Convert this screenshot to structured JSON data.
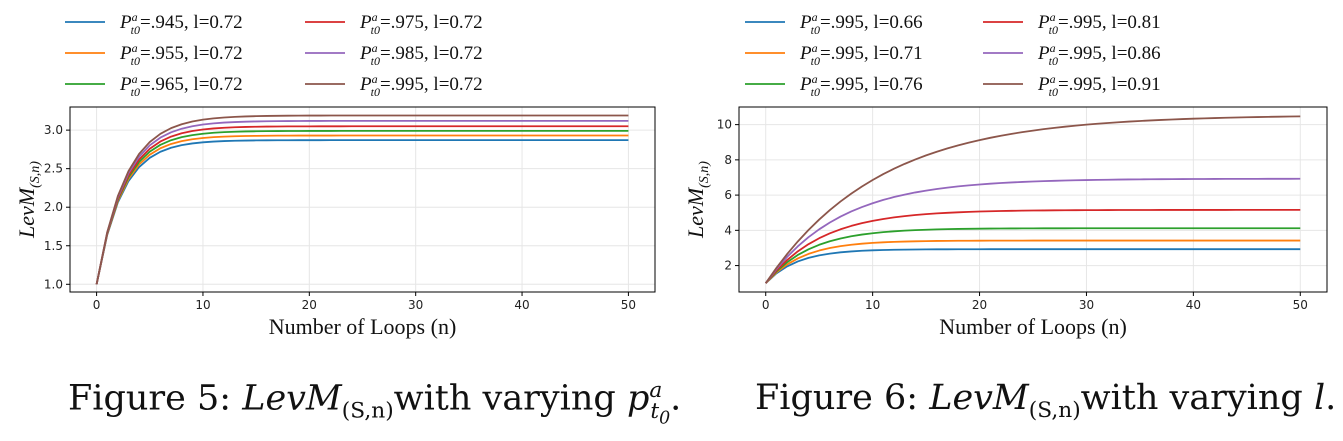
{
  "chart_data": [
    {
      "type": "line",
      "figure": "Figure 5",
      "xlabel": "Number of Loops (n)",
      "ylabel": "LevM",
      "ylabel_sub": "(S,n)",
      "xlim": [
        -2.5,
        52.5
      ],
      "ylim": [
        0.9,
        3.3
      ],
      "xticks": [
        0,
        10,
        20,
        30,
        40,
        50
      ],
      "yticks": [
        1.0,
        1.5,
        2.0,
        2.5,
        3.0
      ],
      "grid": true,
      "legend_position": "top, two columns, above plot",
      "n_points": 51,
      "series": [
        {
          "name_var": "P",
          "name_sup": "a",
          "name_sub": "t0",
          "name_rest": "=.945, l=0.72",
          "color": "#1f77b4",
          "start": 1.0,
          "limit": 2.87,
          "rate": 0.42
        },
        {
          "name_var": "P",
          "name_sup": "a",
          "name_sub": "t0",
          "name_rest": "=.955, l=0.72",
          "color": "#ff7f0e",
          "start": 1.0,
          "limit": 2.93,
          "rate": 0.41
        },
        {
          "name_var": "P",
          "name_sup": "a",
          "name_sub": "t0",
          "name_rest": "=.965, l=0.72",
          "color": "#2ca02c",
          "start": 1.0,
          "limit": 2.99,
          "rate": 0.4
        },
        {
          "name_var": "P",
          "name_sup": "a",
          "name_sub": "t0",
          "name_rest": "=.975, l=0.72",
          "color": "#d62728",
          "start": 1.0,
          "limit": 3.05,
          "rate": 0.39
        },
        {
          "name_var": "P",
          "name_sup": "a",
          "name_sub": "t0",
          "name_rest": "=.985, l=0.72",
          "color": "#9467bd",
          "start": 1.0,
          "limit": 3.12,
          "rate": 0.38
        },
        {
          "name_var": "P",
          "name_sup": "a",
          "name_sub": "t0",
          "name_rest": "=.995, l=0.72",
          "color": "#8c564b",
          "start": 1.0,
          "limit": 3.19,
          "rate": 0.37
        }
      ]
    },
    {
      "type": "line",
      "figure": "Figure 6",
      "xlabel": "Number of Loops (n)",
      "ylabel": "LevM",
      "ylabel_sub": "(S,n)",
      "xlim": [
        -2.5,
        52.5
      ],
      "ylim": [
        0.5,
        11.0
      ],
      "xticks": [
        0,
        10,
        20,
        30,
        40,
        50
      ],
      "yticks": [
        2,
        4,
        6,
        8,
        10
      ],
      "grid": true,
      "legend_position": "top, two columns, above plot",
      "n_points": 51,
      "series": [
        {
          "name_var": "P",
          "name_sup": "a",
          "name_sub": "t0",
          "name_rest": "=.995, l=0.66",
          "color": "#1f77b4",
          "start": 1.0,
          "limit": 2.93,
          "rate": 0.34
        },
        {
          "name_var": "P",
          "name_sup": "a",
          "name_sub": "t0",
          "name_rest": "=.995, l=0.71",
          "color": "#ff7f0e",
          "start": 1.0,
          "limit": 3.42,
          "rate": 0.29
        },
        {
          "name_var": "P",
          "name_sup": "a",
          "name_sub": "t0",
          "name_rest": "=.995, l=0.76",
          "color": "#2ca02c",
          "start": 1.0,
          "limit": 4.12,
          "rate": 0.24
        },
        {
          "name_var": "P",
          "name_sup": "a",
          "name_sub": "t0",
          "name_rest": "=.995, l=0.81",
          "color": "#d62728",
          "start": 1.0,
          "limit": 5.16,
          "rate": 0.19
        },
        {
          "name_var": "P",
          "name_sup": "a",
          "name_sub": "t0",
          "name_rest": "=.995, l=0.86",
          "color": "#9467bd",
          "start": 1.0,
          "limit": 6.93,
          "rate": 0.145
        },
        {
          "name_var": "P",
          "name_sup": "a",
          "name_sub": "t0",
          "name_rest": "=.995, l=0.91",
          "color": "#8c564b",
          "start": 1.0,
          "limit": 10.55,
          "rate": 0.095
        }
      ]
    }
  ],
  "captions": {
    "fig5_prefix": "Figure 5:",
    "fig5_math": "LevM",
    "fig5_math_sub": "(S,n)",
    "fig5_text": "with varying",
    "fig5_var": "p",
    "fig5_var_sup": "a",
    "fig5_var_sub": "t",
    "fig5_var_subsub": "0",
    "fig5_end": ".",
    "fig6_prefix": "Figure 6:",
    "fig6_math": "LevM",
    "fig6_math_sub": "(S,n)",
    "fig6_text": "with varying",
    "fig6_var": "l",
    "fig6_end": "."
  }
}
